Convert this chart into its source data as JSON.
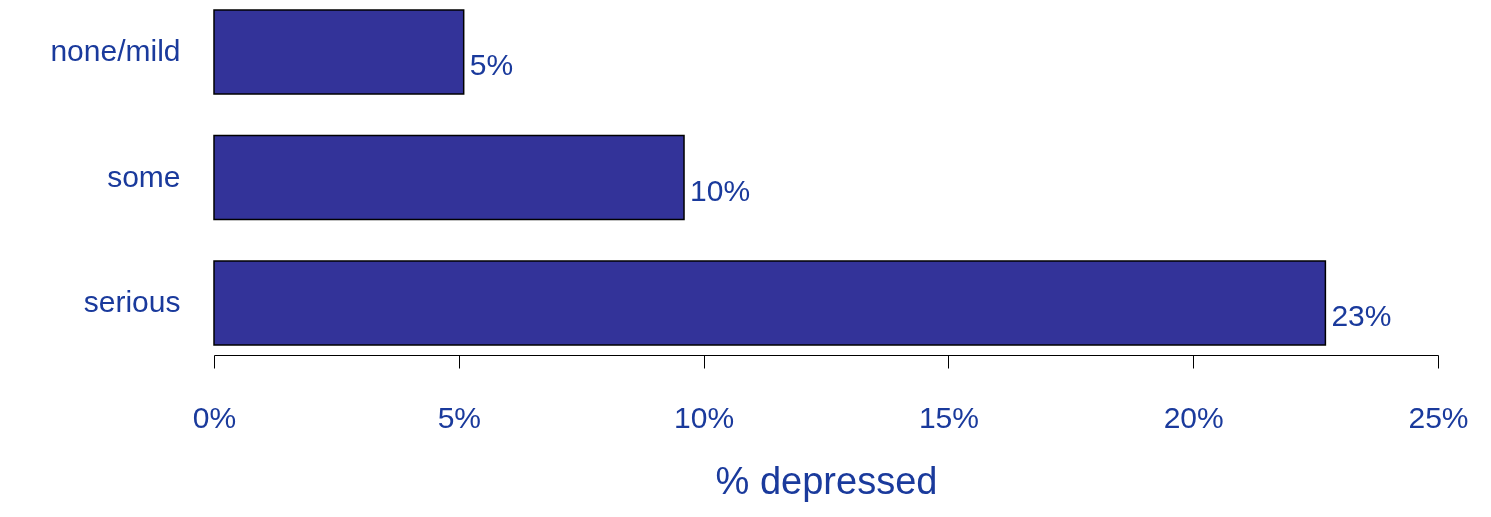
{
  "chart_data": {
    "type": "bar",
    "orientation": "horizontal",
    "xlabel": "% depressed",
    "categories": [
      "none/mild",
      "some",
      "serious"
    ],
    "values": [
      5.1,
      9.6,
      22.7
    ],
    "value_labels": [
      "5%",
      "10%",
      "23%"
    ],
    "color": "#333399",
    "xlim": [
      0,
      25
    ],
    "xticks": [
      {
        "value": 0,
        "label": "0%"
      },
      {
        "value": 5,
        "label": "5%"
      },
      {
        "value": 10,
        "label": "10%"
      },
      {
        "value": 15,
        "label": "15%"
      },
      {
        "value": 20,
        "label": "20%"
      },
      {
        "value": 25,
        "label": "25%"
      }
    ],
    "grid": false
  }
}
